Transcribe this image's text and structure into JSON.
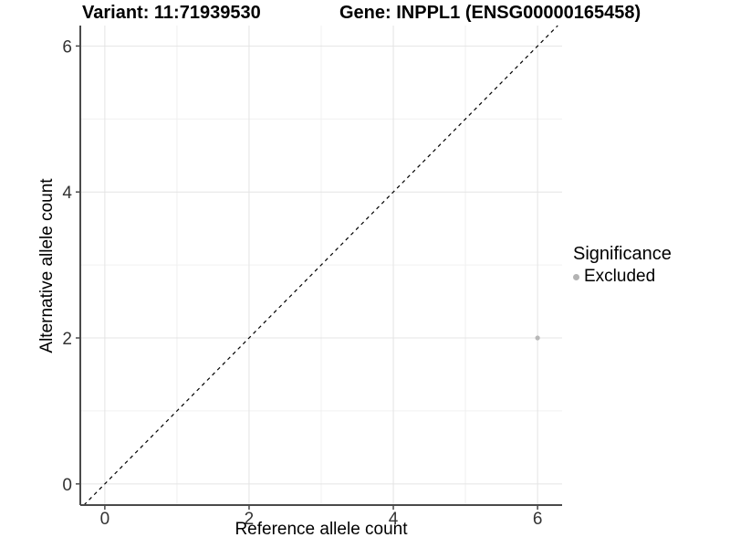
{
  "titles": {
    "variant": "Variant: 11:71939530",
    "gene": "Gene: INPPL1 (ENSG00000165458)"
  },
  "chart_data": {
    "type": "scatter",
    "title_left": "Variant: 11:71939530",
    "title_right": "Gene: INPPL1 (ENSG00000165458)",
    "xlabel": "Reference allele count",
    "ylabel": "Alternative allele count",
    "xlim": [
      -0.34,
      6.34
    ],
    "ylim": [
      -0.29,
      6.28
    ],
    "x_ticks": [
      0,
      2,
      4,
      6
    ],
    "y_ticks": [
      0,
      2,
      4,
      6
    ],
    "x_minor_ticks": [
      1,
      3,
      5
    ],
    "y_minor_ticks": [
      1,
      3,
      5
    ],
    "grid": true,
    "points": [
      {
        "x": 6,
        "y": 2,
        "series": "Excluded",
        "color": "#b8b8b8",
        "radius": 2.6
      }
    ],
    "reference_line": {
      "kind": "identity",
      "slope": 1,
      "intercept": 0,
      "style": "dashed",
      "color": "#000000"
    },
    "legend": {
      "title": "Significance",
      "position": "right",
      "items": [
        {
          "label": "Excluded",
          "color": "#b3b3b3",
          "marker": "circle"
        }
      ]
    },
    "colors": {
      "grid_major": "#e4e4e4",
      "grid_minor": "#f0f0f0",
      "axis_line": "#4a4a4a",
      "tick_mark": "#4a4a4a",
      "tick_label": "#333333",
      "panel_bg": "#ffffff"
    }
  }
}
